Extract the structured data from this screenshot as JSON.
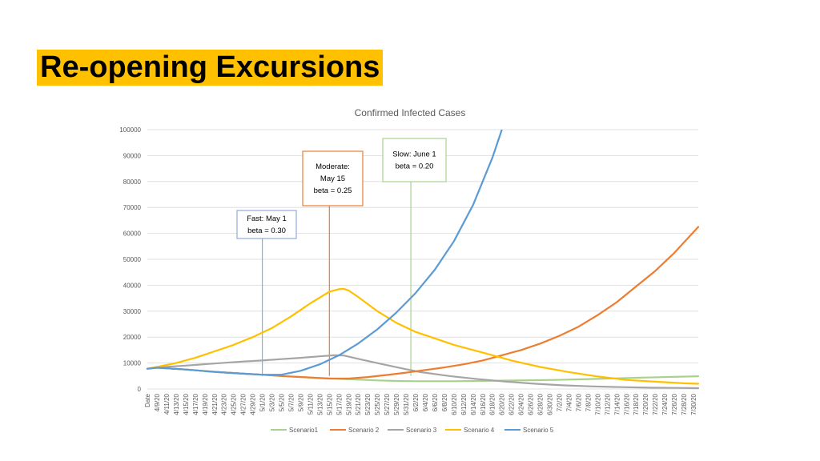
{
  "slide": {
    "title": "Re-opening Excursions"
  },
  "chart_data": {
    "type": "line",
    "title": "Confirmed Infected Cases",
    "xlabel": "",
    "ylabel": "",
    "ylim": [
      0,
      100000
    ],
    "yticks": [
      0,
      10000,
      20000,
      30000,
      40000,
      50000,
      60000,
      70000,
      80000,
      90000,
      100000
    ],
    "x_first_label": "Date",
    "x_tick_labels": [
      "4/9/20",
      "4/11/20",
      "4/13/20",
      "4/15/20",
      "4/17/20",
      "4/19/20",
      "4/21/20",
      "4/23/20",
      "4/25/20",
      "4/27/20",
      "4/29/20",
      "5/1/20",
      "5/3/20",
      "5/5/20",
      "5/7/20",
      "5/9/20",
      "5/11/20",
      "5/13/20",
      "5/15/20",
      "5/17/20",
      "5/19/20",
      "5/21/20",
      "5/23/20",
      "5/25/20",
      "5/27/20",
      "5/29/20",
      "5/31/20",
      "6/2/20",
      "6/4/20",
      "6/6/20",
      "6/8/20",
      "6/10/20",
      "6/12/20",
      "6/14/20",
      "6/16/20",
      "6/18/20",
      "6/20/20",
      "6/22/20",
      "6/24/20",
      "6/26/20",
      "6/28/20",
      "6/30/20",
      "7/2/20",
      "7/4/20",
      "7/6/20",
      "7/8/20",
      "7/10/20",
      "7/12/20",
      "7/14/20",
      "7/16/20",
      "7/18/20",
      "7/20/20",
      "7/22/20",
      "7/24/20",
      "7/26/20",
      "7/28/20",
      "7/30/20"
    ],
    "grid": true,
    "legend_position": "bottom",
    "series": [
      {
        "name": "Scenario1",
        "color": "#a9d18e",
        "x": [
          "4/7/20",
          "4/9/20",
          "4/15/20",
          "4/21/20",
          "4/27/20",
          "5/1/20",
          "5/5/20",
          "5/9/20",
          "5/13/20",
          "5/17/20",
          "5/21/20",
          "5/25/20",
          "5/29/20",
          "6/2/20",
          "6/10/20",
          "6/20/20",
          "7/1/20",
          "7/10/20",
          "7/20/20",
          "7/31/20"
        ],
        "y": [
          7800,
          8200,
          7500,
          6600,
          5900,
          5500,
          5000,
          4600,
          4200,
          3900,
          3600,
          3300,
          3100,
          3000,
          3000,
          3200,
          3500,
          3900,
          4400,
          4900
        ]
      },
      {
        "name": "Scenario 2",
        "color": "#ed7d31",
        "x": [
          "4/7/20",
          "4/9/20",
          "4/15/20",
          "4/21/20",
          "4/27/20",
          "5/1/20",
          "5/5/20",
          "5/10/20",
          "5/15/20",
          "5/19/20",
          "5/23/20",
          "5/27/20",
          "5/31/20",
          "6/4/20",
          "6/8/20",
          "6/12/20",
          "6/16/20",
          "6/20/20",
          "6/24/20",
          "6/28/20",
          "7/2/20",
          "7/6/20",
          "7/10/20",
          "7/14/20",
          "7/18/20",
          "7/22/20",
          "7/26/20",
          "7/31/20"
        ],
        "y": [
          7800,
          8200,
          7500,
          6600,
          5900,
          5500,
          5000,
          4500,
          4000,
          4000,
          4600,
          5400,
          6300,
          7300,
          8300,
          9500,
          11000,
          13000,
          15000,
          17500,
          20500,
          24000,
          28500,
          33500,
          39500,
          45500,
          52500,
          62500
        ]
      },
      {
        "name": "Scenario 3",
        "color": "#a5a5a5",
        "x": [
          "4/7/20",
          "4/9/20",
          "4/15/20",
          "4/21/20",
          "4/27/20",
          "5/1/20",
          "5/5/20",
          "5/9/20",
          "5/13/20",
          "5/16/20",
          "5/18/20",
          "5/22/20",
          "5/26/20",
          "5/30/20",
          "6/3/20",
          "6/9/20",
          "6/15/20",
          "6/21/20",
          "6/27/20",
          "7/3/20",
          "7/9/20",
          "7/15/20",
          "7/21/20",
          "7/27/20",
          "7/31/20"
        ],
        "y": [
          7800,
          8300,
          9000,
          9800,
          10600,
          11000,
          11500,
          12000,
          12600,
          13000,
          12900,
          11200,
          9600,
          8000,
          6500,
          5000,
          3800,
          2800,
          2000,
          1400,
          1000,
          700,
          500,
          400,
          300
        ]
      },
      {
        "name": "Scenario 4",
        "color": "#ffc000",
        "x": [
          "4/7/20",
          "4/9/20",
          "4/13/20",
          "4/17/20",
          "4/21/20",
          "4/25/20",
          "4/29/20",
          "5/3/20",
          "5/7/20",
          "5/11/20",
          "5/15/20",
          "5/17/20",
          "5/18/20",
          "5/19/20",
          "5/21/20",
          "5/25/20",
          "5/29/20",
          "6/2/20",
          "6/6/20",
          "6/10/20",
          "6/16/20",
          "6/22/20",
          "6/28/20",
          "7/4/20",
          "7/10/20",
          "7/16/20",
          "7/22/20",
          "7/28/20",
          "7/31/20"
        ],
        "y": [
          7800,
          8500,
          10000,
          12000,
          14500,
          17000,
          20000,
          23500,
          28000,
          33000,
          37500,
          38500,
          38600,
          38000,
          35500,
          30000,
          25500,
          22000,
          19500,
          17000,
          14000,
          11000,
          8500,
          6500,
          4800,
          3500,
          2800,
          2200,
          2000
        ]
      },
      {
        "name": "Scenario 5",
        "color": "#5b9bd5",
        "x": [
          "4/7/20",
          "4/9/20",
          "4/15/20",
          "4/21/20",
          "4/27/20",
          "5/1/20",
          "5/5/20",
          "5/9/20",
          "5/13/20",
          "5/17/20",
          "5/21/20",
          "5/25/20",
          "5/29/20",
          "6/2/20",
          "6/6/20",
          "6/10/20",
          "6/14/20",
          "6/18/20",
          "6/20/20"
        ],
        "y": [
          7800,
          8200,
          7500,
          6600,
          5900,
          5500,
          5500,
          7000,
          9500,
          13000,
          17500,
          23000,
          29500,
          37000,
          46000,
          57000,
          71000,
          89000,
          100000
        ]
      }
    ],
    "annotations": [
      {
        "lines": [
          "Fast: May 1",
          "beta = 0.30"
        ],
        "x": "5/1/20",
        "color": "#8faadc",
        "box": {
          "x": 296,
          "y": 263,
          "w": 74,
          "h": 35
        },
        "line_top": 298
      },
      {
        "lines": [
          "Moderate:",
          "May 15",
          "beta = 0.25"
        ],
        "x": "5/15/20",
        "color": "#ed7d31",
        "box": {
          "x": 378,
          "y": 189,
          "w": 75,
          "h": 68
        },
        "line_top": 257
      },
      {
        "lines": [
          "Slow: June 1",
          "beta = 0.20"
        ],
        "x": "6/1/20",
        "color": "#a9d18e",
        "box": {
          "x": 478,
          "y": 173,
          "w": 79,
          "h": 54
        },
        "line_top": 227
      }
    ]
  }
}
